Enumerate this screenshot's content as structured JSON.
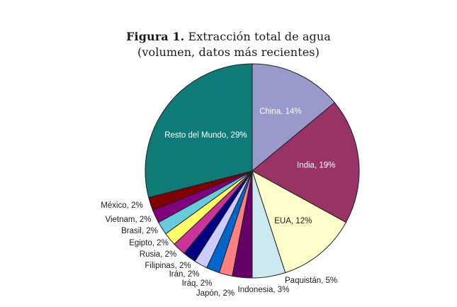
{
  "chart_data": {
    "type": "pie",
    "title_prefix": "Figura 1.",
    "title_rest": "Extracción total de agua",
    "subtitle": "(volumen, datos más recientes)",
    "unit": "%",
    "slices": [
      {
        "label": "China",
        "value": 14,
        "color": "#9999cc"
      },
      {
        "label": "India",
        "value": 19,
        "color": "#993366"
      },
      {
        "label": "EUA",
        "value": 12,
        "color": "#ffffcc"
      },
      {
        "label": "Paquistán",
        "value": 5,
        "color": "#cce8f0"
      },
      {
        "label": "Indonesia",
        "value": 3,
        "color": "#660066"
      },
      {
        "label": "Japón",
        "value": 2,
        "color": "#ff8080"
      },
      {
        "label": "Iráq",
        "value": 2,
        "color": "#0066cc"
      },
      {
        "label": "Irán",
        "value": 2,
        "color": "#ccccff"
      },
      {
        "label": "Filipinas",
        "value": 2,
        "color": "#000080"
      },
      {
        "label": "Rusia",
        "value": 2,
        "color": "#cc3399"
      },
      {
        "label": "Egipto",
        "value": 2,
        "color": "#ffff66"
      },
      {
        "label": "Brasil",
        "value": 2,
        "color": "#66ccdd"
      },
      {
        "label": "Vietnam",
        "value": 2,
        "color": "#800080"
      },
      {
        "label": "México",
        "value": 2,
        "color": "#800000"
      },
      {
        "label": "Resto del Mundo",
        "value": 29,
        "color": "#0f7b78"
      }
    ]
  }
}
